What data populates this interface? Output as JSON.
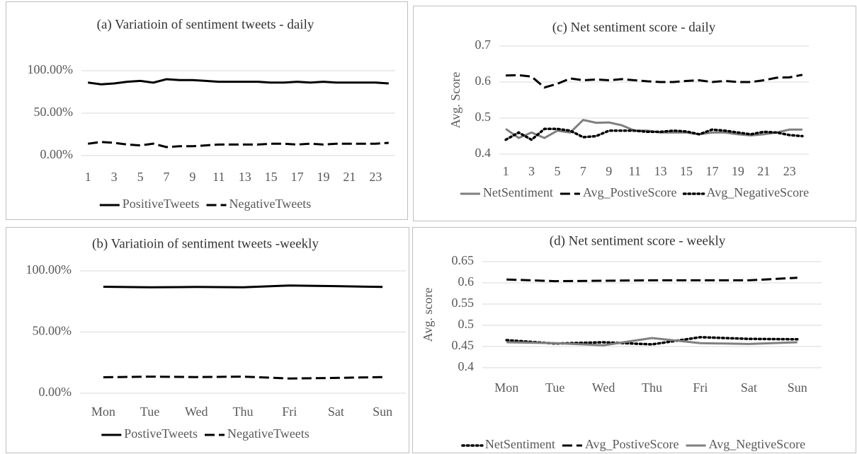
{
  "chart_data": [
    {
      "type": "line",
      "title": "(a) Variatioin of sentiment tweets - daily",
      "categories": [
        "1",
        null,
        "3",
        null,
        "5",
        null,
        "7",
        null,
        "9",
        null,
        "11",
        null,
        "13",
        null,
        "15",
        null,
        "17",
        null,
        "19",
        null,
        "21",
        null,
        "23",
        null
      ],
      "series": [
        {
          "name": "PositiveTweets",
          "color": "#000000",
          "dash": "solid",
          "values": [
            86,
            84,
            85,
            87,
            88,
            86,
            90,
            89,
            89,
            88,
            87,
            87,
            87,
            87,
            86,
            86,
            87,
            86,
            87,
            86,
            86,
            86,
            86,
            85
          ]
        },
        {
          "name": "NegativeTweets",
          "color": "#000000",
          "dash": "dashed",
          "values": [
            14,
            16,
            15,
            13,
            12,
            14,
            10,
            11,
            11,
            12,
            13,
            13,
            13,
            13,
            14,
            14,
            13,
            14,
            13,
            14,
            14,
            14,
            14,
            15
          ]
        }
      ],
      "ylim": [
        0,
        100
      ],
      "yticks": [
        {
          "value": 0,
          "label": "0.00%"
        },
        {
          "value": 50,
          "label": "50.00%"
        },
        {
          "value": 100,
          "label": "100.00%"
        }
      ],
      "grid": true
    },
    {
      "type": "line",
      "title": "(c)  Net sentiment score - daily",
      "y_label": "Avg. Score",
      "categories": [
        "1",
        null,
        "3",
        null,
        "5",
        null,
        "7",
        null,
        "9",
        null,
        "11",
        null,
        "13",
        null,
        "15",
        null,
        "17",
        null,
        "19",
        null,
        "21",
        null,
        "23",
        null
      ],
      "series": [
        {
          "name": "NetSentiment",
          "color": "#7f7f7f",
          "dash": "solid",
          "values": [
            0.47,
            0.445,
            0.46,
            0.445,
            0.465,
            0.46,
            0.495,
            0.487,
            0.488,
            0.48,
            0.465,
            0.465,
            0.46,
            0.46,
            0.46,
            0.455,
            0.46,
            0.46,
            0.455,
            0.452,
            0.455,
            0.46,
            0.468,
            0.468
          ]
        },
        {
          "name": "Avg_PostiveScore",
          "color": "#000000",
          "dash": "dashed",
          "values": [
            0.618,
            0.619,
            0.615,
            0.585,
            0.595,
            0.61,
            0.605,
            0.607,
            0.605,
            0.608,
            0.605,
            0.602,
            0.6,
            0.6,
            0.603,
            0.605,
            0.6,
            0.603,
            0.6,
            0.6,
            0.605,
            0.612,
            0.613,
            0.62
          ]
        },
        {
          "name": "Avg_NegativeScore",
          "color": "#000000",
          "dash": "dotted",
          "values": [
            0.44,
            0.46,
            0.44,
            0.47,
            0.47,
            0.465,
            0.447,
            0.45,
            0.465,
            0.465,
            0.465,
            0.462,
            0.462,
            0.465,
            0.463,
            0.455,
            0.468,
            0.465,
            0.46,
            0.455,
            0.462,
            0.46,
            0.453,
            0.45
          ]
        }
      ],
      "ylim": [
        0.4,
        0.7
      ],
      "yticks": [
        0.4,
        0.5,
        0.6,
        0.7
      ],
      "grid": true
    },
    {
      "type": "line",
      "title": "(b) Variatioin of sentiment tweets -weekly",
      "categories": [
        "Mon",
        "Tue",
        "Wed",
        "Thu",
        "Fri",
        "Sat",
        "Sun"
      ],
      "series": [
        {
          "name": "PostiveTweets",
          "color": "#000000",
          "dash": "solid",
          "values": [
            87,
            86.5,
            86.8,
            86.5,
            88,
            87.5,
            86.8
          ]
        },
        {
          "name": "NegativeTweets",
          "color": "#000000",
          "dash": "dashed",
          "values": [
            13,
            13.5,
            13.2,
            13.5,
            12,
            12.5,
            13.2
          ]
        }
      ],
      "ylim": [
        0,
        115
      ],
      "yticks": [
        {
          "value": 0,
          "label": "0.00%"
        },
        {
          "value": 50,
          "label": "50.00%"
        },
        {
          "value": 100,
          "label": "100.00%"
        }
      ],
      "grid": true
    },
    {
      "type": "line",
      "title": "(d) Net sentiment score - weekly",
      "y_label": "Avg. score",
      "categories": [
        "Mon",
        "Tue",
        "Wed",
        "Thu",
        "Fri",
        "Sat",
        "Sun"
      ],
      "series": [
        {
          "name": "NetSentiment",
          "color": "#000000",
          "dash": "dotted",
          "values": [
            0.465,
            0.457,
            0.46,
            0.455,
            0.472,
            0.468,
            0.467
          ]
        },
        {
          "name": "Avg_PostiveScore",
          "color": "#000000",
          "dash": "dashed",
          "values": [
            0.608,
            0.604,
            0.605,
            0.606,
            0.606,
            0.606,
            0.612
          ]
        },
        {
          "name": "Avg_NegtiveScore",
          "color": "#7f7f7f",
          "dash": "solid",
          "values": [
            0.46,
            0.458,
            0.453,
            0.47,
            0.458,
            0.456,
            0.46
          ]
        }
      ],
      "ylim": [
        0.4,
        0.65
      ],
      "yticks": [
        0.4,
        0.45,
        0.5,
        0.55,
        0.6,
        0.65
      ],
      "grid": true
    }
  ]
}
